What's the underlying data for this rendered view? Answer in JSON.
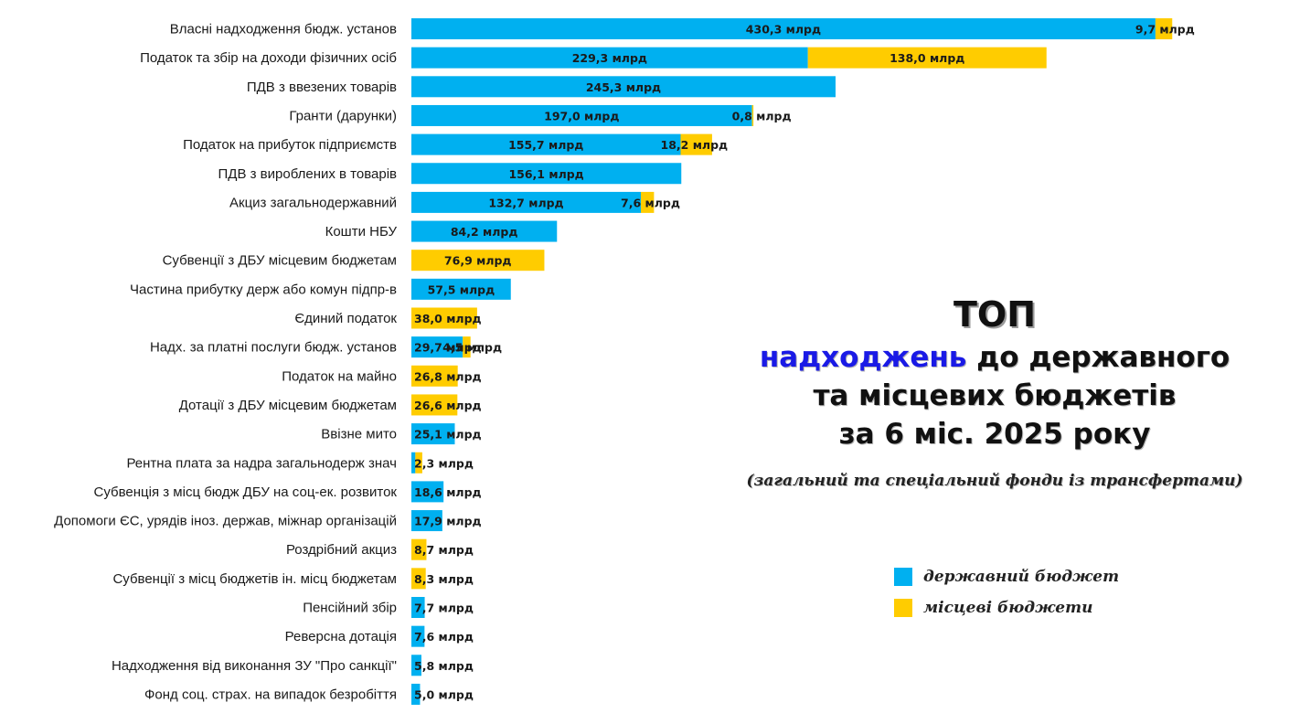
{
  "colors": {
    "state": "#00b0f0",
    "local": "#ffcc00"
  },
  "title": {
    "top": "ТОП",
    "accent": "надходжень",
    "line1_rest": " до державного",
    "line2": "та місцевих бюджетів",
    "line3": "за 6 міс. 2025 року"
  },
  "subtitle": "(загальний та спеціальний фонди із трансфертами)",
  "legend": {
    "state": "державний бюджет",
    "local": "місцеві бюджети"
  },
  "chart_data": {
    "type": "bar",
    "orientation": "horizontal",
    "stacked": true,
    "unit": "млрд",
    "legend_placement": "right",
    "grid": false,
    "categories": [
      "Власні надходження бюдж. установ",
      "Податок та збір на доходи фізичних осіб",
      "ПДВ з ввезених товарів",
      "Гранти (дарунки)",
      "Податок на прибуток підприємств",
      "ПДВ з вироблених в товарів",
      "Акциз загальнодержавний",
      "Кошти НБУ",
      "Субвенції з ДБУ місцевим бюджетам",
      "Частина прибутку держ або комун підпр-в",
      "Єдиний податок",
      "Надх. за платні послуги бюдж. установ",
      "Податок на майно",
      "Дотації з ДБУ місцевим бюджетам",
      "Ввізне мито",
      "Рентна плата за надра загальнодерж знач",
      "Субвенція з місц бюдж ДБУ на соц-ек. розвиток",
      "Допомоги ЄС, урядів іноз. держав, міжнар організацій",
      "Роздрібний акциз",
      "Субвенції з місц бюджетів ін. місц бюджетам",
      "Пенсійний збір",
      "Реверсна дотація",
      "Надходження від виконання ЗУ \"Про санкції\"",
      "Фонд соц. страх. на випадок безробіття"
    ],
    "series": [
      {
        "name": "державний бюджет",
        "values": [
          430.3,
          229.3,
          245.3,
          197.0,
          155.7,
          156.1,
          132.7,
          84.2,
          0,
          57.5,
          0,
          29.7,
          0,
          0,
          25.1,
          2.3,
          18.6,
          17.9,
          0,
          0,
          7.7,
          7.6,
          5.8,
          5.0
        ],
        "labels": [
          "430,3 млрд",
          "229,3 млрд",
          "245,3 млрд",
          "197,0 млрд",
          "155,7 млрд",
          "156,1 млрд",
          "132,7 млрд",
          "84,2 млрд",
          "",
          "57,5 млрд",
          "",
          "29,7 млрд",
          "",
          "",
          "25,1 млрд",
          "2,3 млрд",
          "18,6 млрд",
          "17,9 млрд",
          "",
          "",
          "7,7 млрд",
          "7,6 млрд",
          "5,8 млрд",
          "5,0 млрд"
        ]
      },
      {
        "name": "місцеві бюджети",
        "values": [
          9.7,
          138.0,
          0,
          0.8,
          18.2,
          0,
          7.6,
          0,
          76.9,
          0,
          38.0,
          4.5,
          26.8,
          26.6,
          0,
          4.0,
          0,
          0,
          8.7,
          8.3,
          0,
          0,
          0,
          0
        ],
        "labels": [
          "9,7 млрд",
          "138,0 млрд",
          "",
          "0,8 млрд",
          "18,2 млрд",
          "",
          "7,6 млрд",
          "",
          "76,9 млрд",
          "",
          "38,0 млрд",
          "4,5 млрд",
          "26,8 млрд",
          "26,6 млрд",
          "",
          "",
          "",
          "",
          "8,7 млрд",
          "8,3 млрд",
          "",
          "",
          "",
          ""
        ]
      }
    ]
  }
}
